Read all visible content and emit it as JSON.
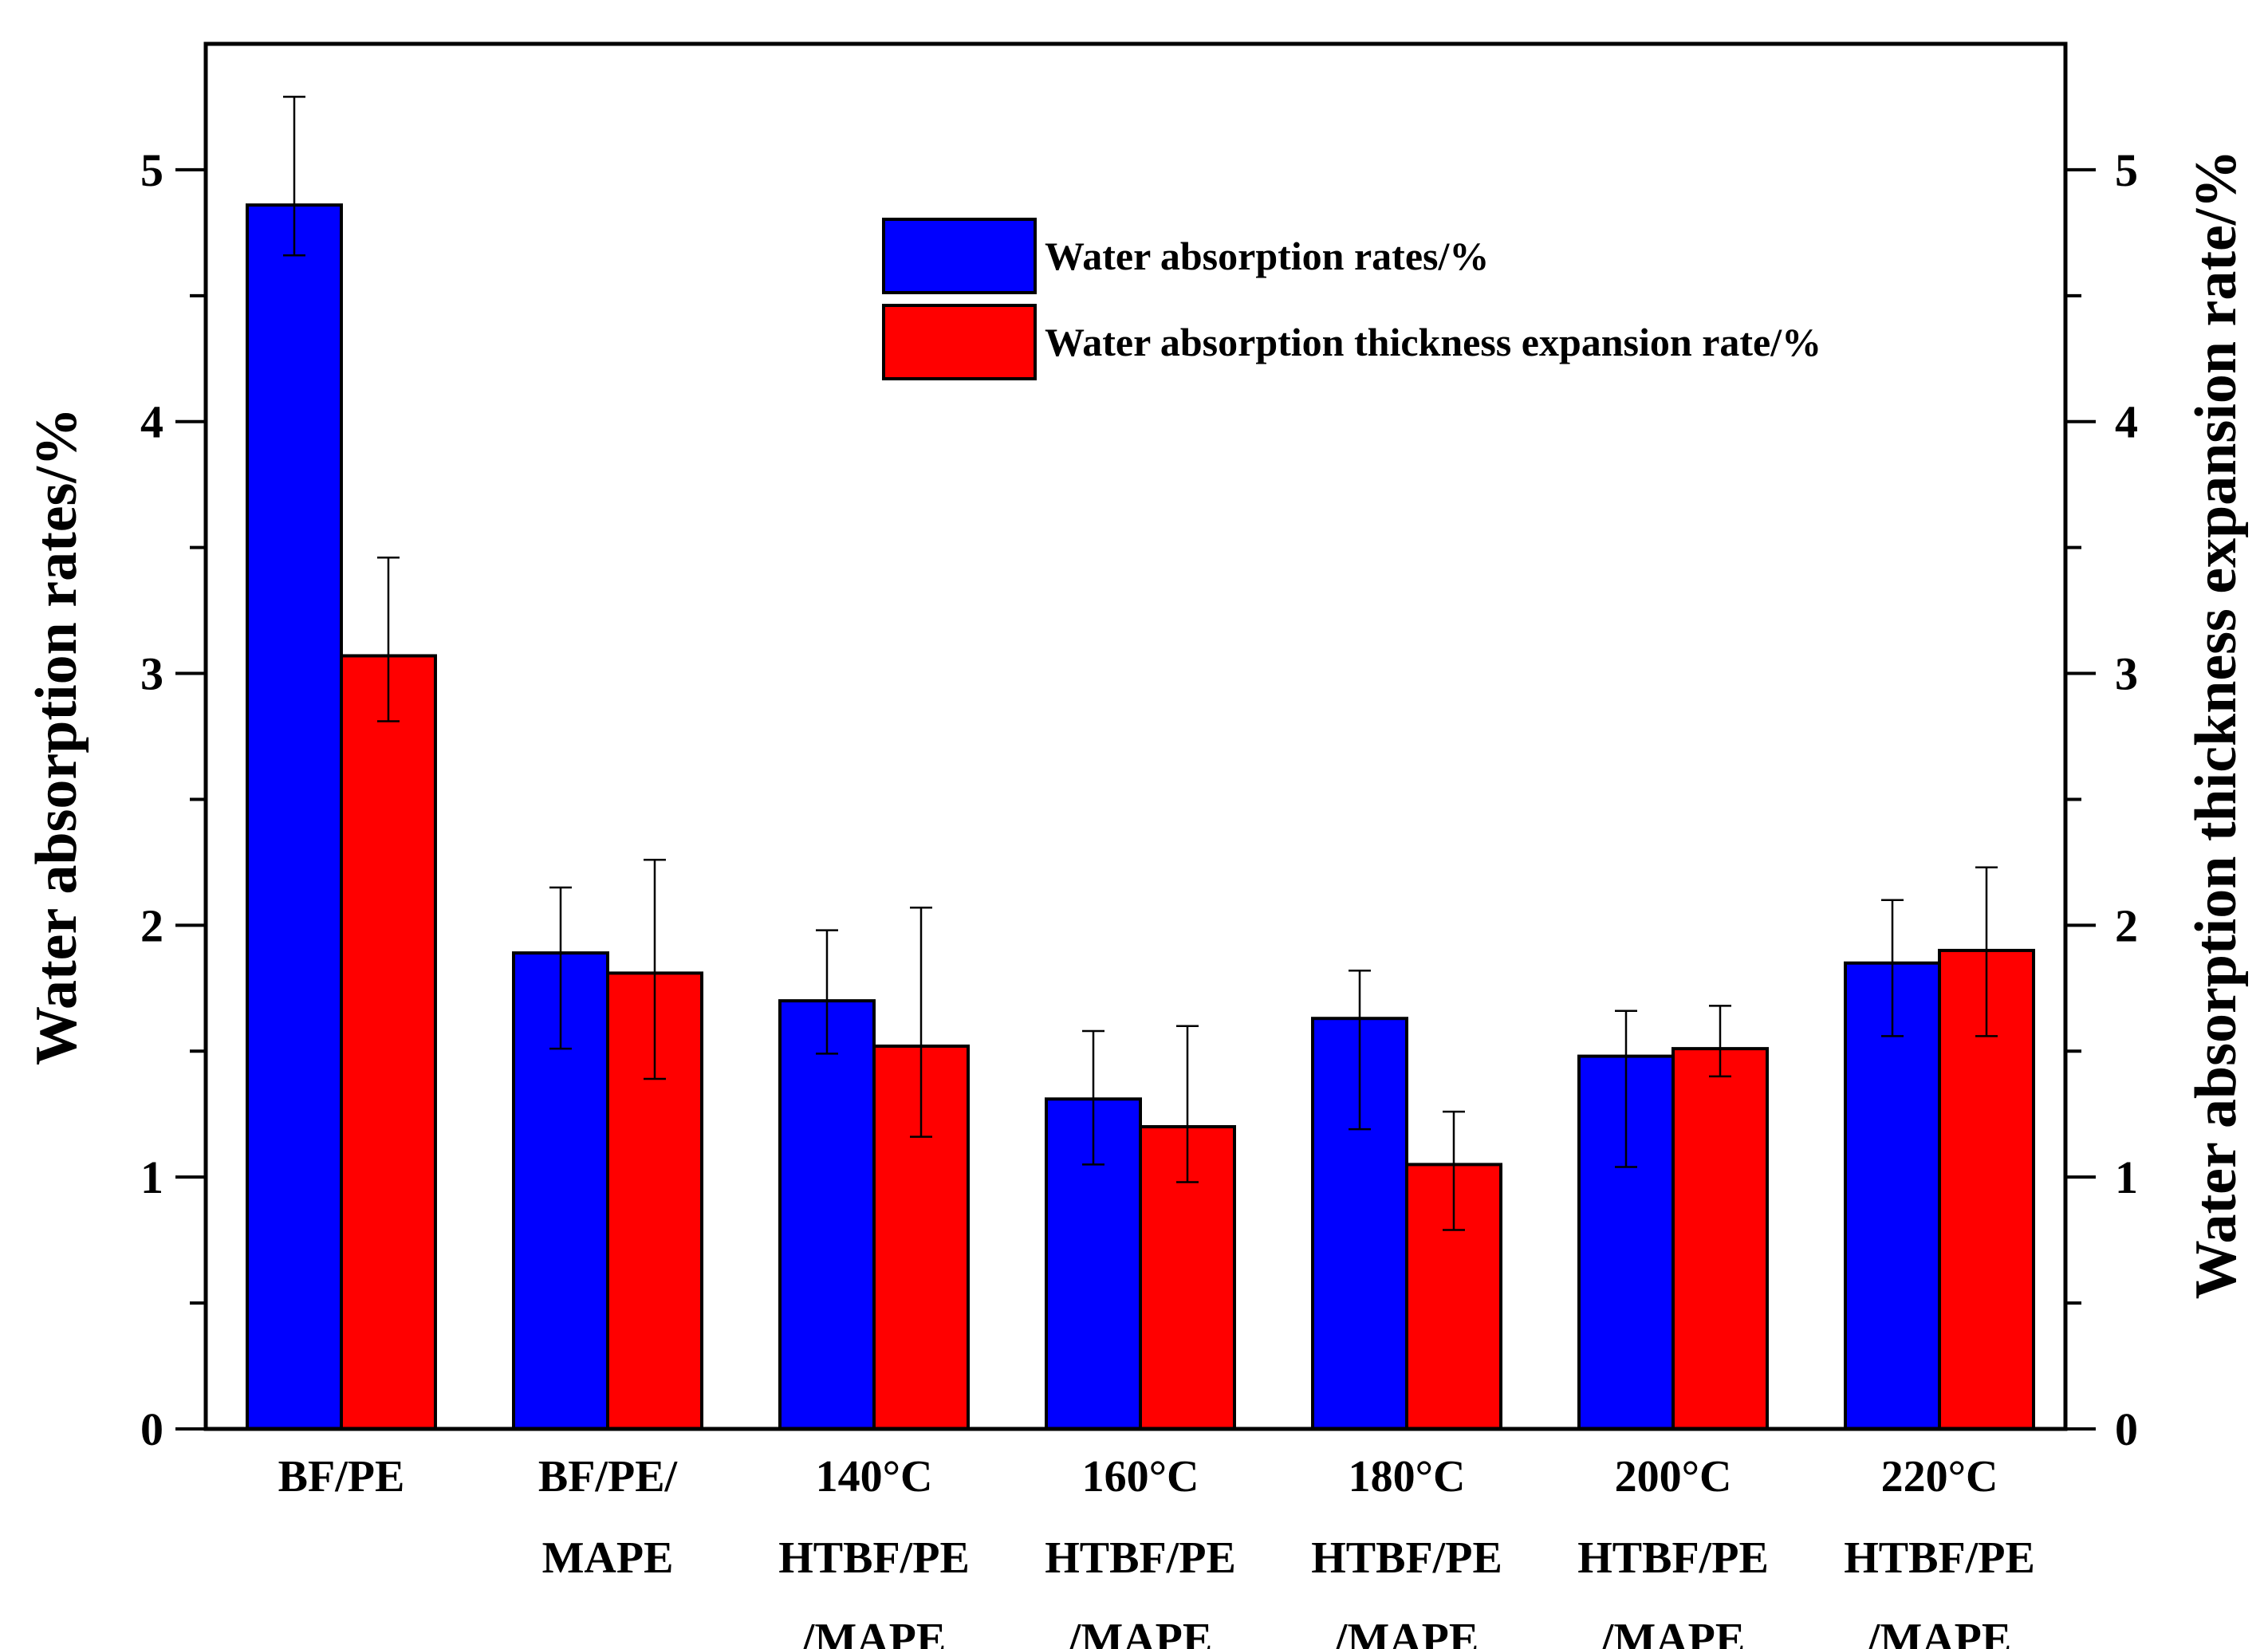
{
  "chart_data": {
    "type": "bar",
    "categories": [
      [
        "BF/PE"
      ],
      [
        "BF/PE/",
        "MAPE"
      ],
      [
        "140°C",
        "HTBF/PE",
        "/MAPE"
      ],
      [
        "160°C",
        "HTBF/PE",
        "/MAPE"
      ],
      [
        "180°C",
        "HTBF/PE",
        "/MAPE"
      ],
      [
        "200°C",
        "HTBF/PE",
        "/MAPE"
      ],
      [
        "220°C",
        "HTBF/PE",
        "/MAPE"
      ]
    ],
    "series": [
      {
        "name": "Water absorption rates/%",
        "color": "#0000ff",
        "values": [
          4.86,
          1.89,
          1.7,
          1.31,
          1.63,
          1.48,
          1.85
        ],
        "err_upper": [
          5.29,
          2.15,
          1.98,
          1.58,
          1.82,
          1.66,
          2.1
        ],
        "err_lower": [
          4.66,
          1.51,
          1.49,
          1.05,
          1.19,
          1.04,
          1.56
        ]
      },
      {
        "name": "Water absorption thickness expansion rate/%",
        "color": "#ff0000",
        "values": [
          3.07,
          1.81,
          1.52,
          1.2,
          1.05,
          1.51,
          1.9
        ],
        "err_upper": [
          3.46,
          2.26,
          2.07,
          1.6,
          1.26,
          1.68,
          2.23
        ],
        "err_lower": [
          2.81,
          1.39,
          1.16,
          0.98,
          0.79,
          1.4,
          1.56
        ]
      }
    ],
    "ylabel": "Water absorption rates/%",
    "ylabel_right": "Water absorption thickness expansion rate/%",
    "xlabel": "",
    "ylim": [
      0,
      5.5
    ],
    "yticks": [
      0,
      1,
      2,
      3,
      4,
      5
    ],
    "grid": false,
    "legend_position": "top-right"
  }
}
